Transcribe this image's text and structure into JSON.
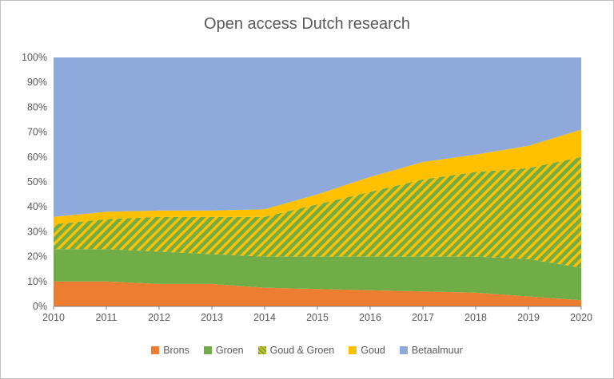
{
  "title": "Open access Dutch research",
  "colors": {
    "axis_text": "#595959",
    "axis_line": "#808080",
    "title_text": "#595959",
    "frame_border": "#BFBFBF",
    "background": "#FFFFFF"
  },
  "chart_data": {
    "type": "area",
    "stacked": true,
    "normalized_percent": true,
    "title": "Open access Dutch research",
    "xlabel": "",
    "ylabel": "",
    "ylim": [
      0,
      100
    ],
    "grid": false,
    "legend_position": "bottom",
    "x": [
      2010,
      2011,
      2012,
      2013,
      2014,
      2015,
      2016,
      2017,
      2018,
      2019,
      2020
    ],
    "y_ticks": [
      0,
      10,
      20,
      30,
      40,
      50,
      60,
      70,
      80,
      90,
      100
    ],
    "y_tick_labels": [
      "0%",
      "10%",
      "20%",
      "30%",
      "40%",
      "50%",
      "60%",
      "70%",
      "80%",
      "90%",
      "100%"
    ],
    "series": [
      {
        "name": "Brons",
        "color": "#ED7D31",
        "values": [
          10,
          10,
          9,
          9,
          7.5,
          7,
          6.5,
          6,
          5.5,
          4,
          2.5
        ]
      },
      {
        "name": "Groen",
        "color": "#70AD47",
        "values": [
          13,
          13,
          13,
          12,
          12.5,
          13,
          13.5,
          14,
          14.5,
          15,
          13
        ]
      },
      {
        "name": "Goud & Groen",
        "pattern": {
          "bg": "#70AD47",
          "stripe": "#FFC000",
          "style": "diagonal-hatch"
        },
        "values": [
          10,
          12,
          14,
          15,
          16,
          21,
          26,
          31,
          34,
          36.5,
          44.5
        ]
      },
      {
        "name": "Goud",
        "color": "#FFC000",
        "values": [
          3,
          3,
          2.5,
          2.5,
          3,
          4,
          6,
          7,
          7,
          9,
          11
        ]
      },
      {
        "name": "Betaalmuur",
        "color": "#8EA9DB",
        "values": [
          64,
          62,
          61.5,
          61.5,
          61,
          55,
          48,
          42,
          39,
          35.5,
          29
        ]
      }
    ]
  }
}
